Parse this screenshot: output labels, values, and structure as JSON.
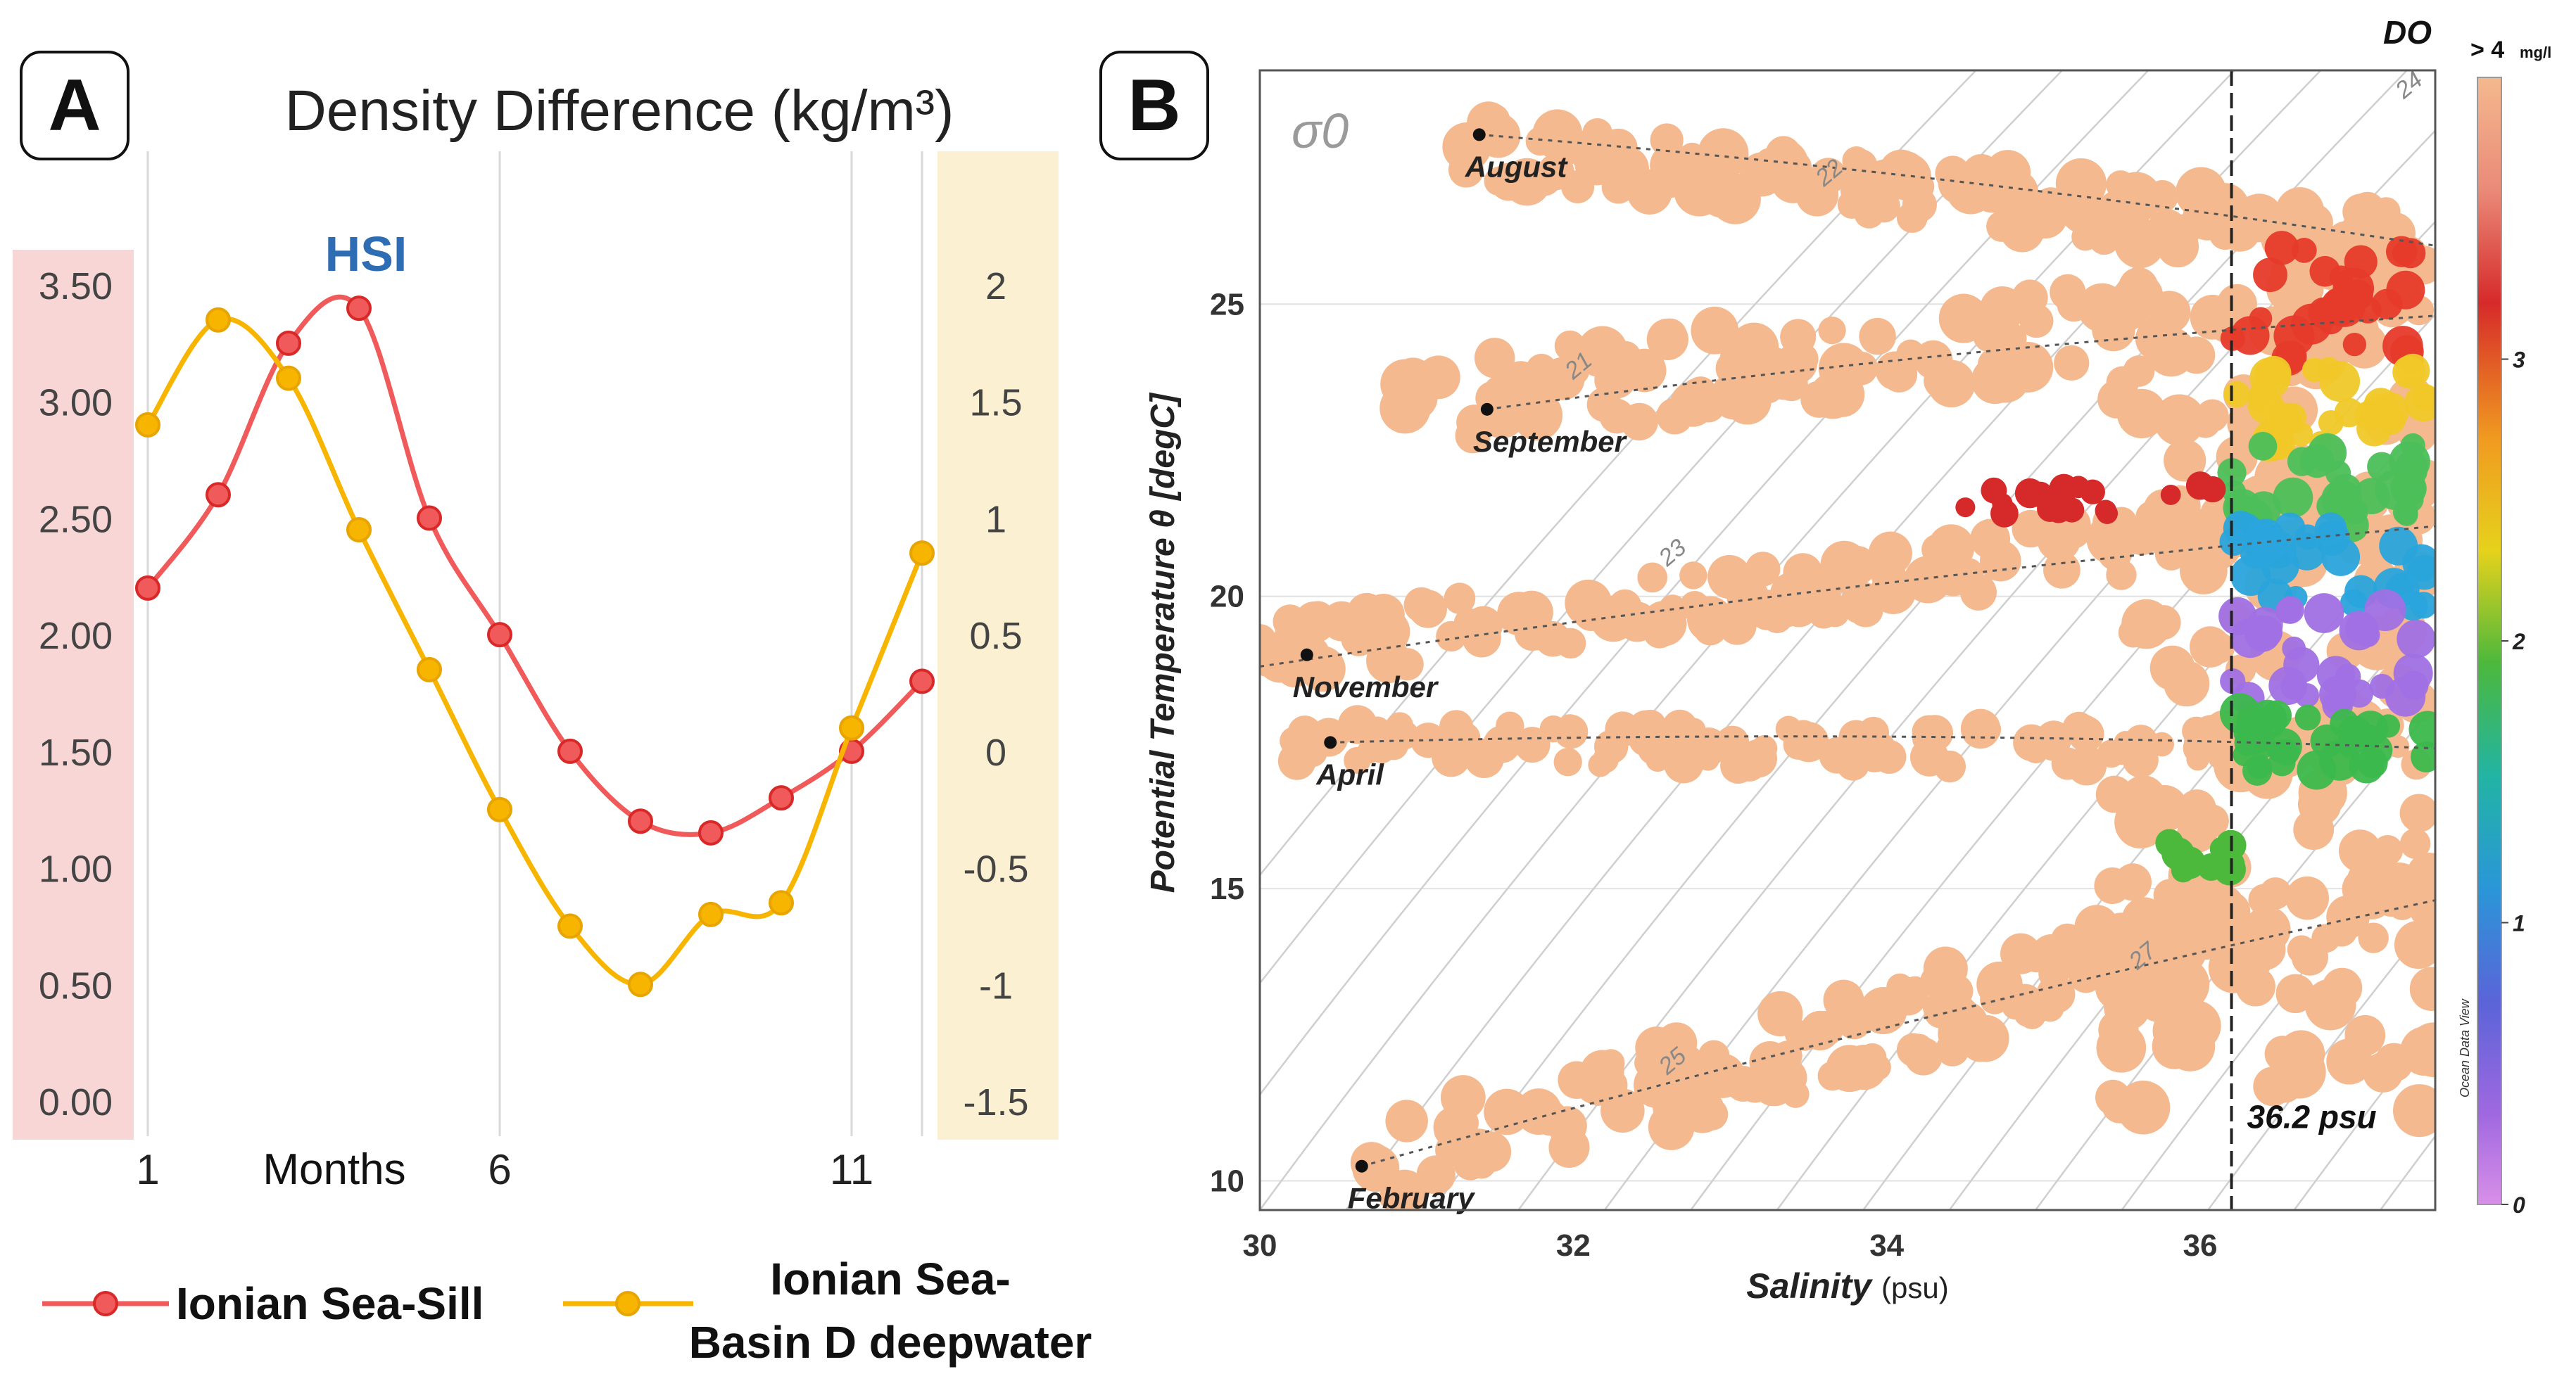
{
  "figure": {
    "panel_a_label": "A",
    "panel_b_label": "B"
  },
  "colors": {
    "sill": "#f05a5a",
    "basin": "#f7b500",
    "left_axis_band": "#f9d6d6",
    "right_axis_band": "#fbf1d2",
    "hsi": "#2e6db4",
    "scatter_fill": "#f4b98e"
  },
  "chart_data": [
    {
      "type": "line",
      "title": "Density Difference (kg/m³)",
      "annotation": "HSI",
      "xlabel": "Months",
      "x": [
        1,
        2,
        3,
        4,
        5,
        6,
        7,
        8,
        9,
        10,
        11,
        12
      ],
      "x_ticks": [
        "1",
        "6",
        "11"
      ],
      "x_tick_values": [
        1,
        6,
        11
      ],
      "xlim": [
        1,
        12
      ],
      "y_left": {
        "lim": [
          0,
          3.5
        ],
        "ticks": [
          "0.00",
          "0.50",
          "1.00",
          "1.50",
          "2.00",
          "2.50",
          "3.00",
          "3.50"
        ]
      },
      "y_right": {
        "lim": [
          -1.5,
          2
        ],
        "ticks": [
          "-1.5",
          "-1",
          "-0.5",
          "0",
          "0.5",
          "1",
          "1.5",
          "2"
        ]
      },
      "series": [
        {
          "name": "Ionian Sea-Sill",
          "axis": "left",
          "values": [
            2.2,
            2.6,
            3.25,
            3.4,
            2.5,
            2.0,
            1.5,
            1.2,
            1.15,
            1.3,
            1.5,
            1.8
          ]
        },
        {
          "name": "Ionian Sea-Basin D deepwater",
          "axis": "right",
          "legend_lines": [
            "Ionian Sea-",
            "Basin D deepwater"
          ],
          "values": [
            1.4,
            1.85,
            1.6,
            0.95,
            0.35,
            -0.25,
            -0.75,
            -1.0,
            -0.7,
            -0.65,
            0.1,
            0.85
          ]
        }
      ]
    },
    {
      "type": "scatter",
      "xlabel": "Salinity",
      "xlabel_unit": "(psu)",
      "ylabel": "Potential Temperature θ [degC]",
      "xlim": [
        30,
        37.5
      ],
      "ylim": [
        9.5,
        29
      ],
      "x_ticks": [
        "30",
        "32",
        "34",
        "36"
      ],
      "x_tick_values": [
        30,
        32,
        34,
        36
      ],
      "y_ticks": [
        "10",
        "15",
        "20",
        "25"
      ],
      "y_tick_values": [
        10,
        15,
        20,
        25
      ],
      "sigma_label": "σ0",
      "isopycnal_labels": [
        "21",
        "22",
        "23",
        "24",
        "25",
        "27"
      ],
      "reference_line": {
        "x": 36.2,
        "label": "36.2 psu"
      },
      "months": [
        {
          "label": "August",
          "x": 31.4,
          "y": 27.9
        },
        {
          "label": "September",
          "x": 31.45,
          "y": 23.2
        },
        {
          "label": "November",
          "x": 30.3,
          "y": 19.0
        },
        {
          "label": "April",
          "x": 30.45,
          "y": 17.5
        },
        {
          "label": "February",
          "x": 30.65,
          "y": 10.25
        }
      ],
      "colorbar": {
        "title": "DO",
        "top_label": "> 4",
        "top_unit": "mg/l",
        "ticks": [
          "3",
          "2",
          "1",
          "0"
        ],
        "tick_values": [
          3,
          2,
          1,
          0
        ],
        "range": [
          0,
          4
        ],
        "credit": "Ocean Data View"
      }
    }
  ]
}
